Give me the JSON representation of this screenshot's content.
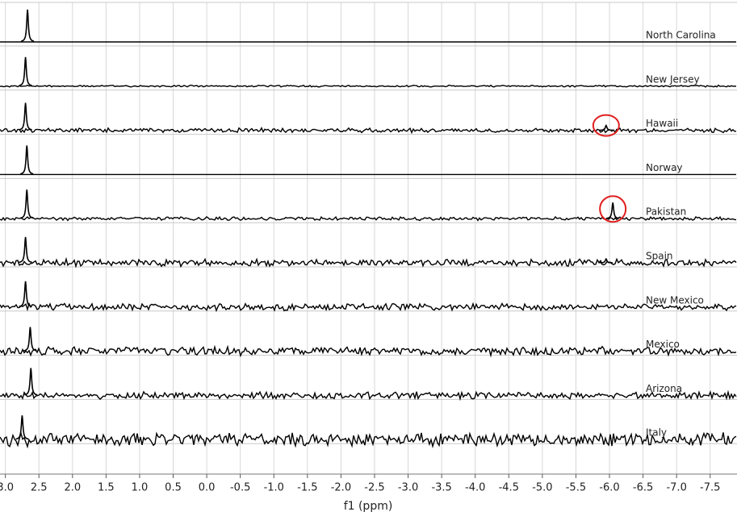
{
  "chart_data": {
    "type": "stacked-spectra",
    "x_label": "f1 (ppm)",
    "xlim": [
      3.08,
      -7.9
    ],
    "xticks": [
      {
        "value": 3,
        "label": "3.0"
      },
      2.5,
      {
        "value": 2,
        "label": "2.0"
      },
      1.5,
      {
        "value": 1,
        "label": "1.0"
      },
      0.5,
      {
        "value": 0,
        "label": "0.0"
      },
      -0.5,
      {
        "value": -1,
        "label": "-1.0"
      },
      -1.5,
      {
        "value": -2,
        "label": "-2.0"
      },
      -2.5,
      {
        "value": -3,
        "label": "-3.0"
      },
      -3.5,
      {
        "value": -4,
        "label": "-4.0"
      },
      -4.5,
      {
        "value": -5,
        "label": "-5.0"
      },
      -5.5,
      {
        "value": -6,
        "label": "-6.0"
      },
      -6.5,
      {
        "value": -7,
        "label": "-7.0"
      },
      -7.5
    ],
    "grid": true,
    "color": "#000000",
    "highlight_color": "#e02020",
    "series": [
      {
        "name": "North Carolina",
        "noise": 0,
        "peaks": [
          {
            "ppm": 2.67,
            "height": 1
          }
        ]
      },
      {
        "name": "New Jersey",
        "noise": 0.02,
        "peaks": [
          {
            "ppm": 2.7,
            "height": 0.9
          }
        ]
      },
      {
        "name": "Hawaii",
        "noise": 0.05,
        "peaks": [
          {
            "ppm": 2.7,
            "height": 0.85
          },
          {
            "ppm": -5.95,
            "height": 0.15,
            "circled": true
          }
        ]
      },
      {
        "name": "Norway",
        "noise": 0,
        "peaks": [
          {
            "ppm": 2.68,
            "height": 0.9
          }
        ]
      },
      {
        "name": "Pakistan",
        "noise": 0.04,
        "peaks": [
          {
            "ppm": 2.68,
            "height": 0.9
          },
          {
            "ppm": -6.05,
            "height": 0.5,
            "circled": true
          }
        ]
      },
      {
        "name": "Spain",
        "noise": 0.08,
        "peaks": [
          {
            "ppm": 2.7,
            "height": 0.8
          },
          {
            "ppm": -5.95,
            "height": 0.12
          }
        ]
      },
      {
        "name": "New Mexico",
        "noise": 0.08,
        "peaks": [
          {
            "ppm": 2.7,
            "height": 0.8
          }
        ]
      },
      {
        "name": "Mexico",
        "noise": 0.1,
        "peaks": [
          {
            "ppm": 2.63,
            "height": 0.75
          }
        ]
      },
      {
        "name": "Arizona",
        "noise": 0.08,
        "peaks": [
          {
            "ppm": 2.62,
            "height": 0.85
          }
        ]
      },
      {
        "name": "Italy",
        "noise": 0.15,
        "peaks": [
          {
            "ppm": 2.75,
            "height": 0.75
          }
        ]
      }
    ]
  }
}
